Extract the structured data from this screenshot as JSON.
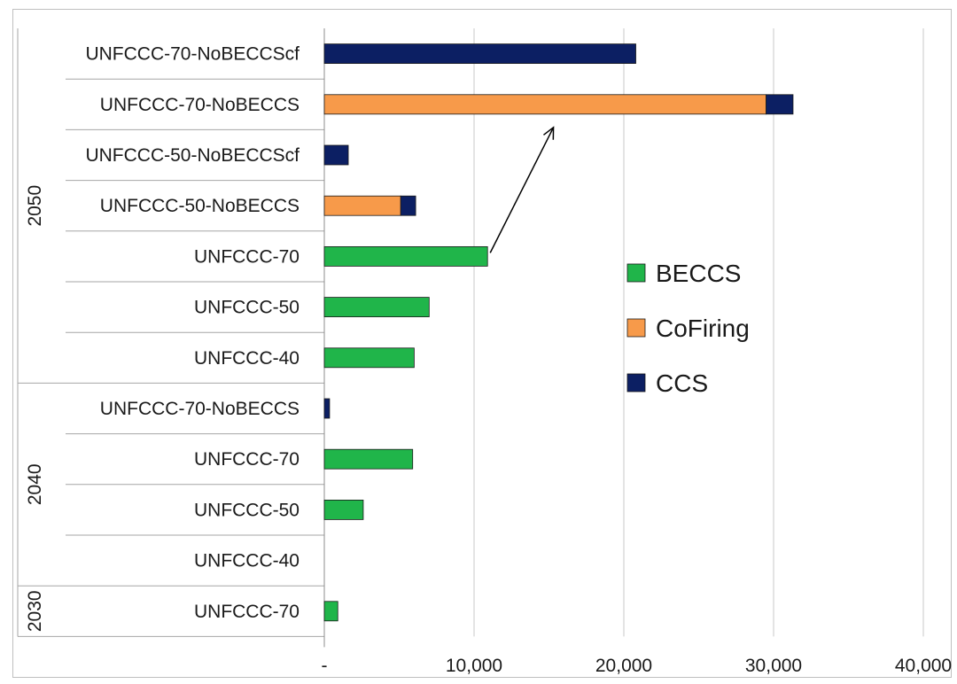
{
  "chart_data": {
    "type": "bar",
    "orientation": "horizontal",
    "stacked": true,
    "categories": [
      {
        "label": "UNFCCC-70-NoBECCScf",
        "group": "2050"
      },
      {
        "label": "UNFCCC-70-NoBECCS",
        "group": "2050"
      },
      {
        "label": "UNFCCC-50-NoBECCScf",
        "group": "2050"
      },
      {
        "label": "UNFCCC-50-NoBECCS",
        "group": "2050"
      },
      {
        "label": "UNFCCC-70",
        "group": "2050"
      },
      {
        "label": "UNFCCC-50",
        "group": "2050"
      },
      {
        "label": "UNFCCC-40",
        "group": "2050"
      },
      {
        "label": "UNFCCC-70-NoBECCS",
        "group": "2040"
      },
      {
        "label": "UNFCCC-70",
        "group": "2040"
      },
      {
        "label": "UNFCCC-50",
        "group": "2040"
      },
      {
        "label": "UNFCCC-40",
        "group": "2040"
      },
      {
        "label": "UNFCCC-70",
        "group": "2030"
      }
    ],
    "groups": [
      "2050",
      "2040",
      "2030"
    ],
    "series": [
      {
        "name": "BECCS",
        "color": "#20b54a",
        "values": [
          0,
          0,
          0,
          0,
          10900,
          7000,
          6000,
          0,
          5900,
          2600,
          0,
          900
        ]
      },
      {
        "name": "CoFiring",
        "color": "#f79a4a",
        "values": [
          0,
          29500,
          0,
          5100,
          0,
          0,
          0,
          0,
          0,
          0,
          0,
          0
        ]
      },
      {
        "name": "CCS",
        "color": "#0c1f63",
        "values": [
          20800,
          1800,
          1600,
          1000,
          0,
          0,
          0,
          350,
          0,
          0,
          0,
          0
        ]
      }
    ],
    "xlim": [
      0,
      40000
    ],
    "xticks": [
      0,
      10000,
      20000,
      30000,
      40000
    ],
    "xtick_labels": [
      "-",
      "10,000",
      "20,000",
      "30,000",
      "40,000"
    ],
    "grid": "vertical",
    "legend": "right",
    "annotations": [
      {
        "type": "arrow",
        "from": {
          "category_index": 4,
          "x": 10900
        },
        "to": {
          "category_index": 1,
          "x": 15300
        }
      }
    ],
    "title": "",
    "xlabel": "",
    "ylabel": ""
  }
}
